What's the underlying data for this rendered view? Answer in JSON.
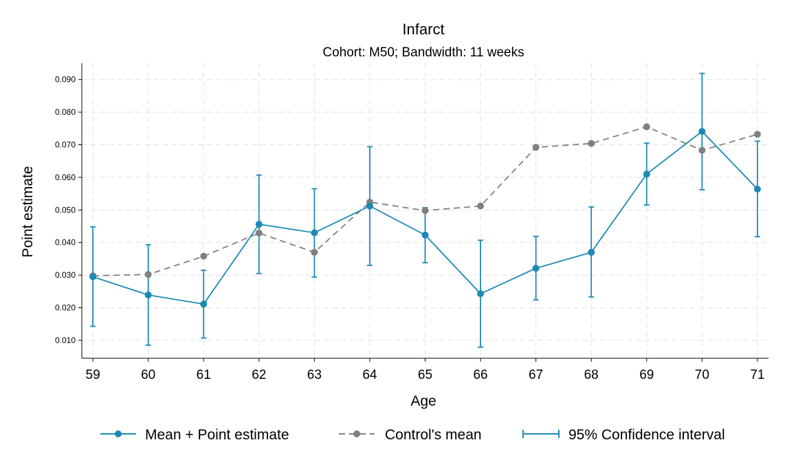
{
  "chart_data": {
    "type": "line",
    "title": "Infarct",
    "subtitle": "Cohort: M50; Bandwidth: 11 weeks",
    "xlabel": "Age",
    "ylabel": "Point estimate",
    "x": [
      59,
      60,
      61,
      62,
      63,
      64,
      65,
      66,
      67,
      68,
      69,
      70,
      71
    ],
    "xlim": [
      58.8,
      71.2
    ],
    "ylim": [
      0.0045,
      0.095
    ],
    "yticks": [
      0.01,
      0.02,
      0.03,
      0.04,
      0.05,
      0.06,
      0.07,
      0.08,
      0.09
    ],
    "ytick_labels": [
      "0.010",
      "0.020",
      "0.030",
      "0.040",
      "0.050",
      "0.060",
      "0.070",
      "0.080",
      "0.090"
    ],
    "grid": true,
    "legend_position": "bottom",
    "series": [
      {
        "name": "Mean + Point estimate",
        "style": "solid",
        "color": "#1a8ab5",
        "values": [
          0.0295,
          0.0239,
          0.0211,
          0.0456,
          0.043,
          0.0512,
          0.0423,
          0.0243,
          0.0321,
          0.037,
          0.061,
          0.0741,
          0.0564
        ],
        "ci_low": [
          0.0143,
          0.0085,
          0.0107,
          0.0305,
          0.0294,
          0.033,
          0.0338,
          0.0079,
          0.0224,
          0.0233,
          0.0515,
          0.0562,
          0.0418
        ],
        "ci_high": [
          0.0448,
          0.0393,
          0.0315,
          0.0607,
          0.0565,
          0.0694,
          0.0507,
          0.0407,
          0.0419,
          0.0509,
          0.0705,
          0.0919,
          0.0711
        ]
      },
      {
        "name": "Control's mean",
        "style": "dashed",
        "color": "#808080",
        "values": [
          0.0298,
          0.0302,
          0.0358,
          0.0429,
          0.037,
          0.0524,
          0.0498,
          0.0512,
          0.0692,
          0.0704,
          0.0755,
          0.0683,
          0.0732
        ]
      }
    ],
    "ci_legend_label": "95% Confidence interval"
  }
}
